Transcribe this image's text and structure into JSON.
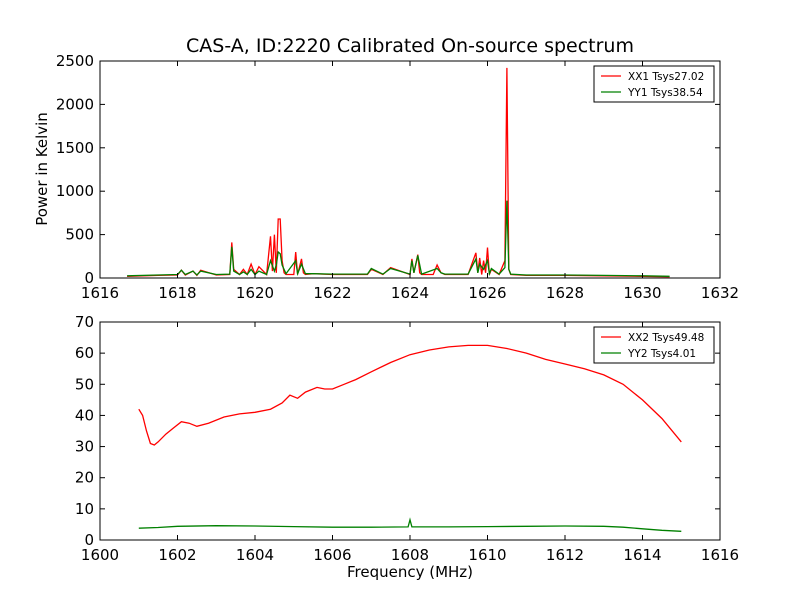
{
  "chart_data": [
    {
      "type": "line",
      "title": "CAS-A, ID:2220 Calibrated On-source spectrum",
      "xlabel": "",
      "ylabel": "Power in Kelvin",
      "xlim": [
        1616,
        1632
      ],
      "ylim": [
        0,
        2500
      ],
      "xticks": [
        "1616",
        "1618",
        "1620",
        "1622",
        "1624",
        "1626",
        "1628",
        "1630",
        "1632"
      ],
      "yticks": [
        "0",
        "500",
        "1000",
        "1500",
        "2000",
        "2500"
      ],
      "legend_position": "top-right",
      "series": [
        {
          "name": "XX1 Tsys27.02",
          "color": "#ff0000",
          "x": [
            1616.7,
            1617.5,
            1618.0,
            1618.1,
            1618.2,
            1618.4,
            1618.5,
            1618.6,
            1619.0,
            1619.35,
            1619.4,
            1619.45,
            1619.6,
            1619.7,
            1619.8,
            1619.9,
            1620.0,
            1620.1,
            1620.3,
            1620.4,
            1620.45,
            1620.5,
            1620.55,
            1620.6,
            1620.65,
            1620.7,
            1620.75,
            1620.8,
            1621.0,
            1621.05,
            1621.1,
            1621.2,
            1621.25,
            1621.3,
            1621.5,
            1622.0,
            1622.5,
            1622.9,
            1623.0,
            1623.3,
            1623.5,
            1624.0,
            1624.05,
            1624.1,
            1624.2,
            1624.25,
            1624.3,
            1624.6,
            1624.7,
            1624.8,
            1624.9,
            1625.5,
            1625.7,
            1625.75,
            1625.8,
            1625.85,
            1625.9,
            1625.95,
            1626.0,
            1626.05,
            1626.1,
            1626.3,
            1626.45,
            1626.5,
            1626.55,
            1626.6,
            1627.0,
            1628.0,
            1629.0,
            1630.0,
            1630.7
          ],
          "values": [
            20,
            30,
            35,
            90,
            35,
            80,
            30,
            90,
            35,
            40,
            410,
            100,
            40,
            100,
            40,
            160,
            40,
            130,
            40,
            480,
            80,
            500,
            60,
            680,
            680,
            200,
            60,
            40,
            40,
            300,
            40,
            220,
            60,
            40,
            50,
            40,
            40,
            40,
            100,
            40,
            120,
            40,
            220,
            60,
            270,
            60,
            40,
            40,
            150,
            60,
            40,
            40,
            290,
            60,
            230,
            40,
            200,
            60,
            350,
            40,
            100,
            40,
            200,
            2420,
            100,
            40,
            30,
            30,
            25,
            20,
            15
          ]
        },
        {
          "name": "YY1 Tsys38.54",
          "color": "#008000",
          "x": [
            1616.7,
            1617.5,
            1618.0,
            1618.1,
            1618.2,
            1618.4,
            1618.5,
            1618.6,
            1619.0,
            1619.35,
            1619.4,
            1619.45,
            1619.6,
            1619.7,
            1619.8,
            1619.9,
            1620.0,
            1620.1,
            1620.3,
            1620.4,
            1620.5,
            1620.55,
            1620.6,
            1620.65,
            1620.7,
            1620.8,
            1621.05,
            1621.1,
            1621.2,
            1621.3,
            1621.5,
            1622.0,
            1622.5,
            1622.9,
            1623.0,
            1623.3,
            1623.5,
            1624.0,
            1624.05,
            1624.1,
            1624.2,
            1624.3,
            1624.7,
            1624.8,
            1624.9,
            1625.5,
            1625.7,
            1625.75,
            1625.8,
            1625.9,
            1626.0,
            1626.05,
            1626.1,
            1626.3,
            1626.45,
            1626.5,
            1626.55,
            1626.6,
            1627.0,
            1628.0,
            1629.0,
            1630.0,
            1630.7
          ],
          "values": [
            25,
            35,
            40,
            90,
            40,
            80,
            35,
            80,
            40,
            45,
            360,
            80,
            40,
            70,
            40,
            100,
            40,
            80,
            40,
            200,
            80,
            150,
            300,
            280,
            150,
            50,
            200,
            50,
            160,
            50,
            50,
            45,
            45,
            45,
            110,
            45,
            110,
            45,
            200,
            60,
            260,
            45,
            110,
            60,
            45,
            45,
            220,
            60,
            160,
            100,
            200,
            50,
            110,
            45,
            120,
            890,
            100,
            45,
            35,
            35,
            30,
            25,
            20
          ]
        }
      ]
    },
    {
      "type": "line",
      "title": "",
      "xlabel": "Frequency (MHz)",
      "ylabel": "",
      "xlim": [
        1600,
        1616
      ],
      "ylim": [
        0,
        70
      ],
      "xticks": [
        "1600",
        "1602",
        "1604",
        "1606",
        "1608",
        "1610",
        "1612",
        "1614",
        "1616"
      ],
      "yticks": [
        "0",
        "10",
        "20",
        "30",
        "40",
        "50",
        "60",
        "70"
      ],
      "legend_position": "top-right",
      "series": [
        {
          "name": "XX2 Tsys49.48",
          "color": "#ff0000",
          "x": [
            1601.0,
            1601.1,
            1601.2,
            1601.3,
            1601.4,
            1601.5,
            1601.7,
            1601.9,
            1602.1,
            1602.3,
            1602.5,
            1602.8,
            1603.2,
            1603.6,
            1604.0,
            1604.4,
            1604.7,
            1604.9,
            1605.1,
            1605.3,
            1605.6,
            1605.8,
            1606.0,
            1606.3,
            1606.6,
            1607.0,
            1607.5,
            1608.0,
            1608.5,
            1609.0,
            1609.5,
            1610.0,
            1610.5,
            1611.0,
            1611.5,
            1612.0,
            1612.5,
            1613.0,
            1613.5,
            1614.0,
            1614.5,
            1615.0
          ],
          "values": [
            42,
            40,
            35,
            31,
            30.5,
            31.5,
            34,
            36,
            38,
            37.5,
            36.5,
            37.5,
            39.5,
            40.5,
            41,
            42,
            44,
            46.5,
            45.5,
            47.5,
            49,
            48.5,
            48.5,
            50,
            51.5,
            54,
            57,
            59.5,
            61,
            62,
            62.5,
            62.5,
            61.5,
            60,
            58,
            56.5,
            55,
            53,
            50,
            45,
            39,
            31.5
          ]
        },
        {
          "name": "YY2 Tsys4.01",
          "color": "#008000",
          "x": [
            1601.0,
            1601.5,
            1602.0,
            1603.0,
            1604.0,
            1605.0,
            1606.0,
            1607.0,
            1607.95,
            1608.0,
            1608.05,
            1609.0,
            1610.0,
            1611.0,
            1612.0,
            1613.0,
            1613.5,
            1614.0,
            1614.5,
            1615.0
          ],
          "values": [
            3.8,
            4.0,
            4.4,
            4.6,
            4.5,
            4.3,
            4.1,
            4.1,
            4.2,
            6.5,
            4.2,
            4.2,
            4.3,
            4.4,
            4.5,
            4.4,
            4.1,
            3.6,
            3.1,
            2.8
          ]
        }
      ]
    }
  ]
}
